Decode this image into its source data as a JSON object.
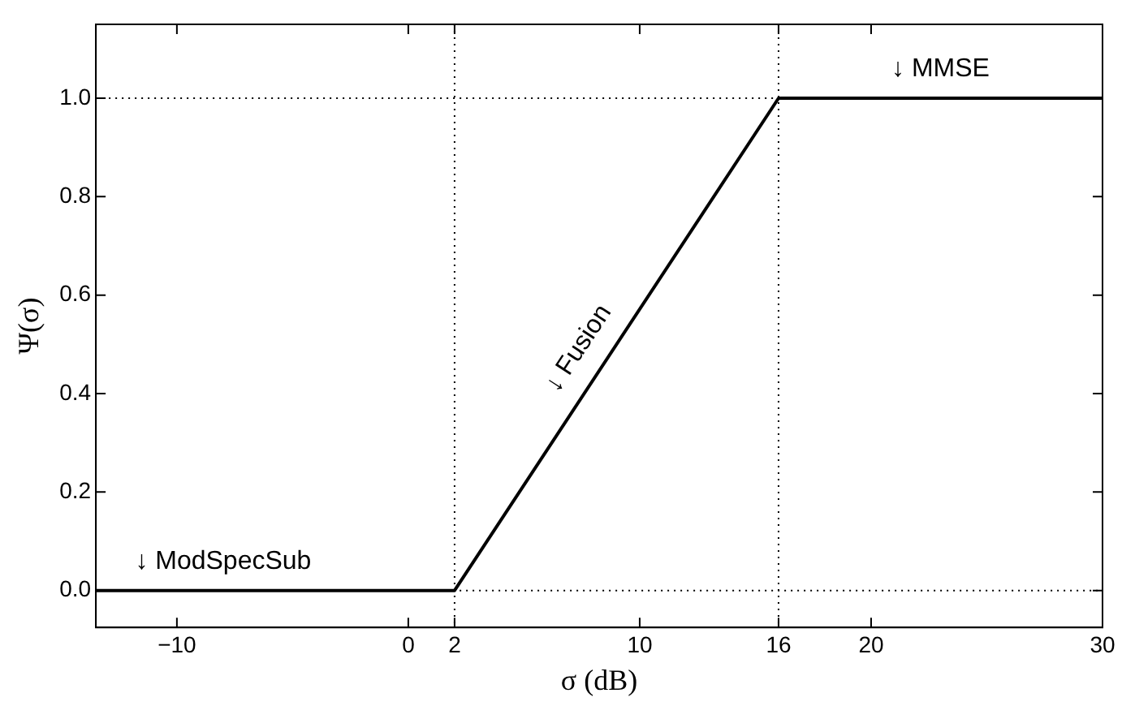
{
  "chart_data": {
    "type": "line",
    "xlabel": "σ (dB)",
    "ylabel": "Ψ(σ)",
    "x": [
      -13.5,
      2,
      16,
      30
    ],
    "series": [
      {
        "color": "#000000",
        "values": [
          0,
          0,
          1,
          1
        ]
      }
    ],
    "xlim": [
      -13.5,
      30
    ],
    "ylim": [
      -0.075,
      1.15
    ],
    "xticks": [
      {
        "value": -10,
        "label": "−10"
      },
      0,
      2,
      10,
      16,
      20,
      30
    ],
    "yticks": [
      {
        "value": 0,
        "label": "0.0"
      },
      {
        "value": 0.2,
        "label": "0.2"
      },
      {
        "value": 0.4,
        "label": "0.4"
      },
      {
        "value": 0.6,
        "label": "0.6"
      },
      {
        "value": 0.8,
        "label": "0.8"
      },
      {
        "value": 1,
        "label": "1.0"
      }
    ],
    "ref_lines": [
      {
        "axis": "x",
        "value": 2,
        "line_style": "dotted"
      },
      {
        "axis": "x",
        "value": 16,
        "line_style": "dotted"
      },
      {
        "axis": "y",
        "value": 0,
        "line_style": "dotted"
      },
      {
        "axis": "y",
        "value": 1,
        "line_style": "dotted"
      }
    ],
    "annotations": [
      {
        "text": "↓ ModSpecSub",
        "x": -8,
        "y": 0
      },
      {
        "text": "↓ Fusion",
        "x": 9,
        "y": 0.5
      },
      {
        "text": "↓ MMSE",
        "x": 23,
        "y": 1
      }
    ],
    "marker": "none",
    "line_style": "solid",
    "grid": false,
    "legend": false
  }
}
